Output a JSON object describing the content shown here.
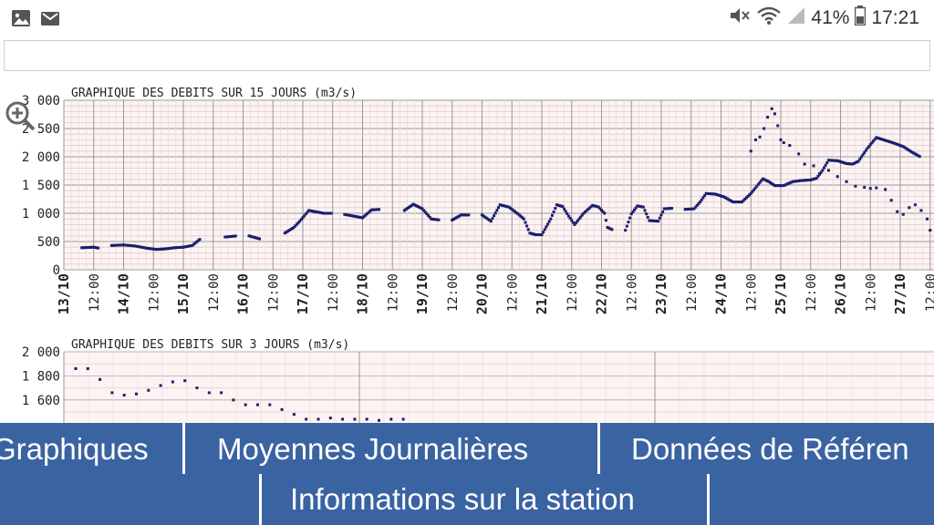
{
  "status_bar": {
    "icons_left": [
      "image-icon",
      "gmail-icon"
    ],
    "icons_right": [
      "mute-icon",
      "wifi-icon",
      "signal-icon",
      "battery-icon"
    ],
    "battery": "41%",
    "time": "17:21"
  },
  "url_bar": {
    "value": ""
  },
  "chart1": {
    "title": "GRAPHIQUE DES DEBITS SUR 15 JOURS (m3/s)",
    "y_ticks": [
      "3 000",
      "2 500",
      "2 000",
      "1 500",
      "1 000",
      "500",
      "0"
    ],
    "x_labels": [
      "13/10",
      "12:00",
      "14/10",
      "12:00",
      "15/10",
      "12:00",
      "16/10",
      "12:00",
      "17/10",
      "12:00",
      "18/10",
      "12:00",
      "19/10",
      "12:00",
      "20/10",
      "12:00",
      "21/10",
      "12:00",
      "22/10",
      "12:00",
      "23/10",
      "12:00",
      "24/10",
      "12:00",
      "25/10",
      "12:00",
      "26/10",
      "12:00",
      "27/10",
      "12:00"
    ]
  },
  "chart2": {
    "title": "GRAPHIQUE DES DEBITS SUR 3 JOURS (m3/s)",
    "y_ticks": [
      "2 000",
      "1 800",
      "1 600"
    ]
  },
  "chart_data": [
    {
      "type": "scatter",
      "title": "GRAPHIQUE DES DEBITS SUR 15 JOURS (m3/s)",
      "ylim": [
        0,
        3000
      ],
      "x_unit": "days since 13/10 00:00",
      "xlim": [
        0,
        14.6
      ],
      "points": [
        [
          0,
          380
        ],
        [
          0.3,
          390
        ],
        [
          0.5,
          400
        ],
        [
          0.6,
          380
        ],
        [
          0.8,
          430
        ],
        [
          1.0,
          440
        ],
        [
          1.2,
          420
        ],
        [
          1.4,
          380
        ],
        [
          1.55,
          360
        ],
        [
          1.7,
          370
        ],
        [
          1.85,
          390
        ],
        [
          2.0,
          400
        ],
        [
          2.15,
          430
        ],
        [
          2.3,
          560
        ],
        [
          2.5,
          580
        ],
        [
          2.7,
          580
        ],
        [
          2.9,
          600
        ],
        [
          3.1,
          600
        ],
        [
          3.3,
          540
        ],
        [
          3.5,
          560
        ],
        [
          3.7,
          650
        ],
        [
          3.85,
          750
        ],
        [
          3.95,
          860
        ],
        [
          4.1,
          1050
        ],
        [
          4.2,
          1030
        ],
        [
          4.35,
          1000
        ],
        [
          4.5,
          1000
        ],
        [
          4.7,
          980
        ],
        [
          4.85,
          950
        ],
        [
          5.0,
          920
        ],
        [
          5.15,
          1060
        ],
        [
          5.3,
          1070
        ],
        [
          5.5,
          1040
        ],
        [
          5.7,
          1050
        ],
        [
          5.85,
          1160
        ],
        [
          6.0,
          1080
        ],
        [
          6.15,
          900
        ],
        [
          6.3,
          880
        ],
        [
          6.5,
          880
        ],
        [
          6.65,
          970
        ],
        [
          6.8,
          970
        ],
        [
          7.0,
          970
        ],
        [
          7.15,
          860
        ],
        [
          7.3,
          1150
        ],
        [
          7.45,
          1110
        ],
        [
          7.6,
          990
        ],
        [
          7.7,
          900
        ],
        [
          7.8,
          650
        ],
        [
          7.9,
          620
        ],
        [
          8.0,
          620
        ],
        [
          8.15,
          900
        ],
        [
          8.25,
          1150
        ],
        [
          8.35,
          1120
        ],
        [
          8.45,
          950
        ],
        [
          8.55,
          800
        ],
        [
          8.7,
          1000
        ],
        [
          8.85,
          1140
        ],
        [
          8.95,
          1110
        ],
        [
          9.05,
          1000
        ],
        [
          9.1,
          750
        ],
        [
          9.2,
          700
        ],
        [
          9.4,
          700
        ],
        [
          9.5,
          990
        ],
        [
          9.6,
          1130
        ],
        [
          9.7,
          1110
        ],
        [
          9.8,
          870
        ],
        [
          9.95,
          860
        ],
        [
          10.05,
          1080
        ],
        [
          10.2,
          1090
        ],
        [
          10.4,
          1070
        ],
        [
          10.55,
          1080
        ],
        [
          10.65,
          1200
        ],
        [
          10.75,
          1350
        ],
        [
          10.9,
          1340
        ],
        [
          11.05,
          1290
        ],
        [
          11.2,
          1200
        ],
        [
          11.35,
          1200
        ],
        [
          11.5,
          1350
        ],
        [
          11.6,
          1480
        ],
        [
          11.7,
          1610
        ],
        [
          11.8,
          1560
        ],
        [
          11.9,
          1490
        ],
        [
          12.05,
          1490
        ],
        [
          12.2,
          1560
        ],
        [
          12.35,
          1580
        ],
        [
          12.5,
          1590
        ],
        [
          12.6,
          1620
        ],
        [
          12.7,
          1760
        ],
        [
          12.8,
          1940
        ],
        [
          12.95,
          1930
        ],
        [
          13.1,
          1880
        ],
        [
          13.2,
          1870
        ],
        [
          13.3,
          1920
        ],
        [
          13.45,
          2150
        ],
        [
          13.6,
          2340
        ],
        [
          13.75,
          2290
        ],
        [
          13.9,
          2240
        ],
        [
          14.05,
          2180
        ],
        [
          14.2,
          2080
        ],
        [
          14.35,
          1990
        ],
        [
          14.6,
          620
        ]
      ]
    },
    {
      "type": "scatter",
      "title": "GRAPHIQUE DES DEBITS SUR 3 JOURS (m3/s)",
      "ylim_visible": [
        1400,
        2000
      ],
      "points_visible": [
        1860,
        1860,
        1770,
        1660,
        1640,
        1650,
        1680,
        1720,
        1750,
        1760,
        1700,
        1660,
        1660,
        1600,
        1560,
        1560,
        1560,
        1520,
        1480,
        1440,
        1440,
        1450,
        1440,
        1440,
        1440,
        1430,
        1440,
        1440
      ]
    }
  ],
  "navbar": {
    "items": [
      "Graphiques",
      "Moyennes Journalières",
      "Données de Référen",
      "Informations sur la station"
    ]
  }
}
